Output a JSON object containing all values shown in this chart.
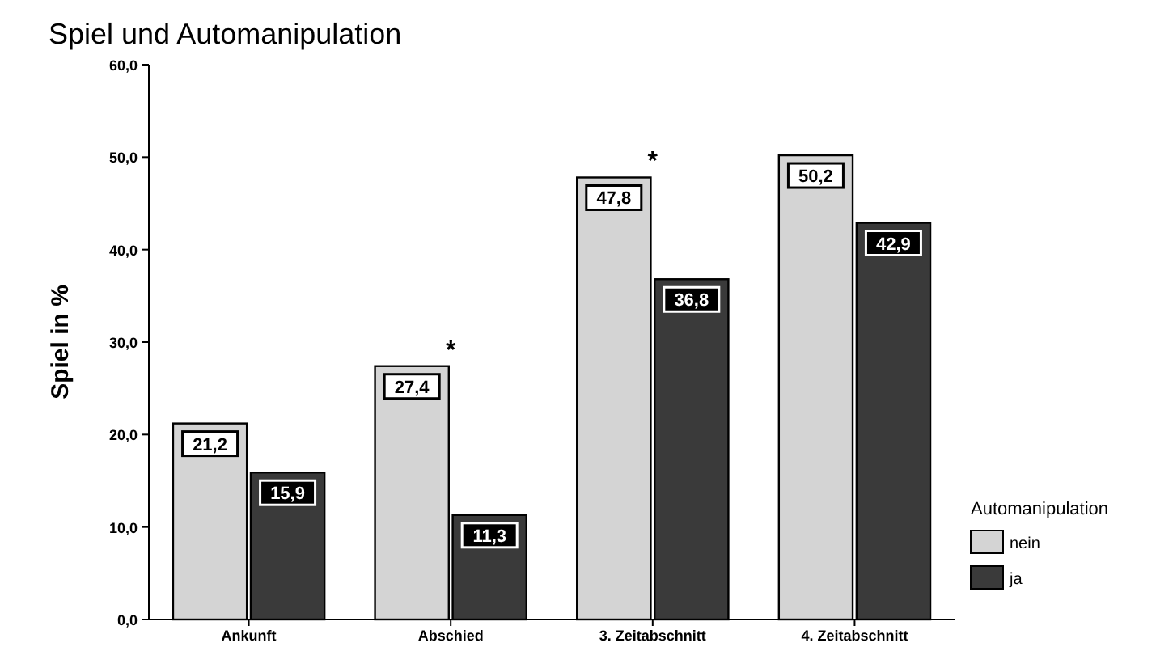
{
  "chart_data": {
    "type": "bar",
    "title": "Spiel und Automanipulation",
    "ylabel": "Spiel in %",
    "legend_title": "Automanipulation",
    "categories": [
      "Ankunft",
      "Abschied",
      "3. Zeitabschnitt",
      "4. Zeitabschnitt"
    ],
    "series": [
      {
        "name": "nein",
        "color": "#d4d4d4",
        "values": [
          21.2,
          27.4,
          47.8,
          50.2
        ],
        "value_labels": [
          "21,2",
          "27,4",
          "47,8",
          "50,2"
        ]
      },
      {
        "name": "ja",
        "color": "#3a3a3a",
        "values": [
          15.9,
          11.3,
          36.8,
          42.9
        ],
        "value_labels": [
          "15,9",
          "11,3",
          "36,8",
          "42,9"
        ]
      }
    ],
    "ylim": [
      0,
      60
    ],
    "yticks": [
      {
        "value": 0,
        "label": "0,0"
      },
      {
        "value": 10,
        "label": "10,0"
      },
      {
        "value": 20,
        "label": "20,0"
      },
      {
        "value": 30,
        "label": "30,0"
      },
      {
        "value": 40,
        "label": "40,0"
      },
      {
        "value": 50,
        "label": "50,0"
      },
      {
        "value": 60,
        "label": "60,0"
      }
    ],
    "annotations": [
      {
        "text": "*",
        "x": "Abschied",
        "y": 27.4
      },
      {
        "text": "*",
        "x": "3. Zeitabschnitt",
        "y": 47.8
      }
    ],
    "legend": "bottom right",
    "grid": false
  }
}
